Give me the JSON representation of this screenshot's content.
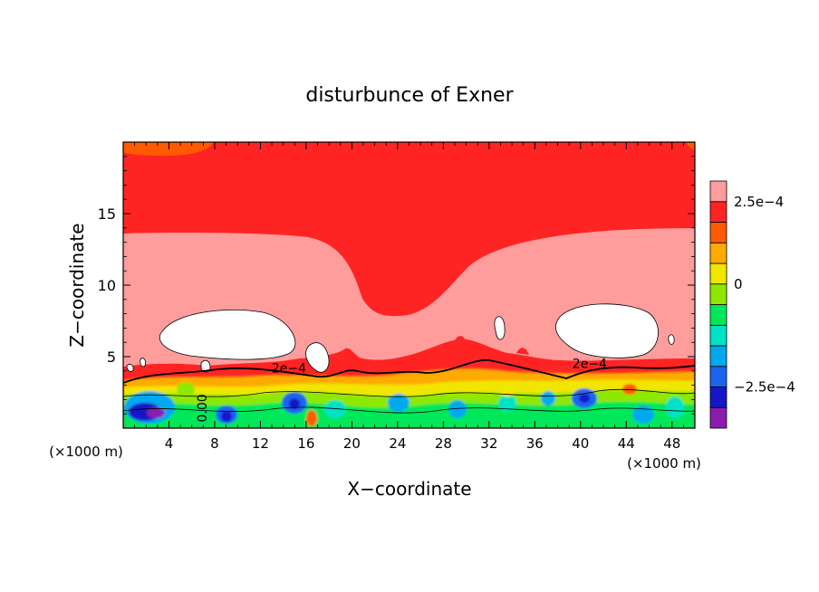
{
  "chart_data": {
    "type": "heatmap",
    "title": "disturbunce of Exner",
    "xlabel": "X−coordinate",
    "ylabel": "Z−coordinate",
    "x_unit_left": "(×1000 m)",
    "x_unit_right": "(×1000 m)",
    "xlim": [
      0,
      50
    ],
    "ylim": [
      0,
      20
    ],
    "x_ticks": [
      4,
      8,
      12,
      16,
      20,
      24,
      28,
      32,
      36,
      40,
      44,
      48
    ],
    "y_ticks": [
      5,
      10,
      15
    ],
    "x_tick_labels": [
      "4",
      "8",
      "12",
      "16",
      "20",
      "24",
      "28",
      "32",
      "36",
      "40",
      "44",
      "48"
    ],
    "y_tick_labels": [
      "5",
      "10",
      "15"
    ],
    "colorbar": {
      "levels": [
        "#8a1cb0",
        "#1616c8",
        "#1a64f0",
        "#00a8ee",
        "#00e2c6",
        "#00e85a",
        "#8ee800",
        "#f0e600",
        "#ffaa00",
        "#ff5a00",
        "#ff2424",
        "#ff9c9c"
      ],
      "labels": [
        {
          "text": "2.5e−4",
          "level": 10
        },
        {
          "text": "0",
          "level": 6
        },
        {
          "text": "−2.5e−4",
          "level": 1
        }
      ]
    },
    "contour_labels": [
      {
        "text": "2e−4",
        "x": 14.5,
        "y": 3.9
      },
      {
        "text": "2e−4",
        "x": 40.8,
        "y": 4.2
      },
      {
        "text": "0.00",
        "x": 7.3,
        "y": 1.4
      }
    ],
    "regions": {
      "bottom_red_rgb": "#ff2424",
      "upper_red": "#ff2424",
      "pink": "#ff9c9c",
      "white_cells": "#ffffff",
      "orange_corner": "#ff5a00"
    }
  }
}
